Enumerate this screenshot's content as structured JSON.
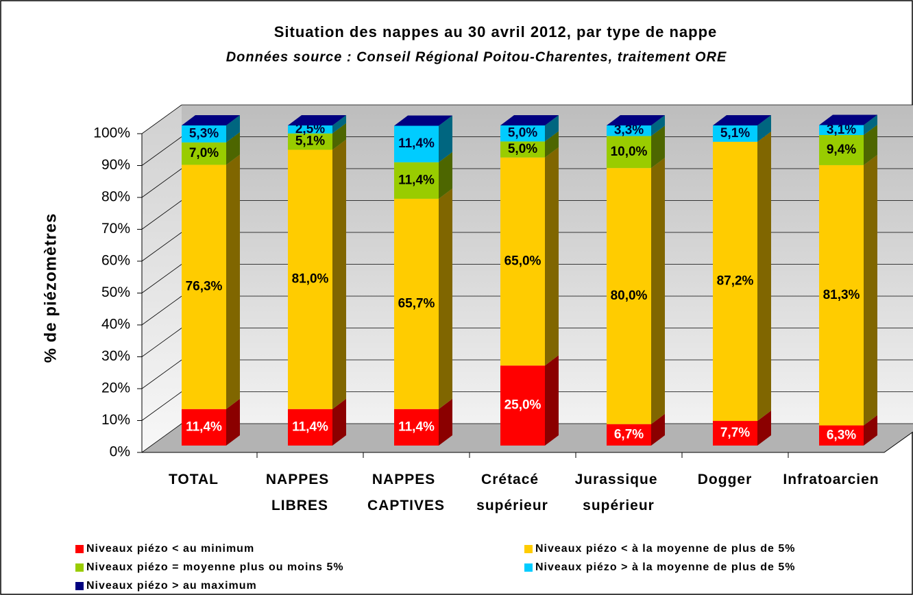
{
  "chart_data": {
    "type": "bar3d_stacked",
    "title": "Situation des nappes au 30 avril 2012, par type de nappe",
    "subtitle": "Données source : Conseil Régional Poitou-Charentes, traitement ORE",
    "y_label": "% de piézomètres",
    "categories": [
      "TOTAL",
      "NAPPES LIBRES",
      "NAPPES CAPTIVES",
      "Crétacé supérieur",
      "Jurassique supérieur",
      "Dogger",
      "Infratoarcien"
    ],
    "series": [
      {
        "name": "Niveaux piézo < au minimum",
        "color": "#ff0000",
        "side": "#8b0000",
        "label_color": "#ffffff",
        "values": [
          11.4,
          11.4,
          11.4,
          25.0,
          6.7,
          7.7,
          6.3
        ],
        "value_labels": [
          "11,4%",
          "11,4%",
          "11,4%",
          "25,0%",
          "6,7%",
          "7,7%",
          "6,3%"
        ]
      },
      {
        "name": "Niveaux piézo < à la moyenne de plus de 5%",
        "color": "#ffcc00",
        "side": "#806600",
        "label_color": "#000000",
        "values": [
          76.3,
          81.0,
          65.7,
          65.0,
          80.0,
          87.2,
          81.3
        ],
        "value_labels": [
          "76,3%",
          "81,0%",
          "65,7%",
          "65,0%",
          "80,0%",
          "87,2%",
          "81,3%"
        ]
      },
      {
        "name": "Niveaux piézo = moyenne plus ou moins 5%",
        "color": "#99cc00",
        "side": "#4d6600",
        "label_color": "#000000",
        "values": [
          7.0,
          5.1,
          11.4,
          5.0,
          10.0,
          0,
          9.4
        ],
        "value_labels": [
          "7,0%",
          "5,1%",
          "11,4%",
          "5,0%",
          "10,0%",
          null,
          "9,4%"
        ]
      },
      {
        "name": "Niveaux piézo > à la moyenne de plus de 5%",
        "color": "#00ccff",
        "side": "#006680",
        "label_color": "#000033",
        "values": [
          5.3,
          2.5,
          11.4,
          5.0,
          3.3,
          5.1,
          3.1
        ],
        "value_labels": [
          "5,3%",
          "2,5%",
          "11,4%",
          "5,0%",
          "3,3%",
          "5,1%",
          "3,1%"
        ]
      },
      {
        "name": "Niveaux piézo > au maximum",
        "color": "#000080",
        "side": "#000050",
        "label_color": "#ffffff",
        "values": [
          0,
          0,
          0,
          0,
          0,
          0,
          0
        ],
        "value_labels": [
          null,
          null,
          null,
          null,
          null,
          null,
          null
        ]
      }
    ],
    "ylim": [
      0,
      100
    ],
    "yticks": [
      {
        "value": 0,
        "label": "0%"
      },
      {
        "value": 10,
        "label": "10%"
      },
      {
        "value": 20,
        "label": "20%"
      },
      {
        "value": 30,
        "label": "30%"
      },
      {
        "value": 40,
        "label": "40%"
      },
      {
        "value": 50,
        "label": "50%"
      },
      {
        "value": 60,
        "label": "60%"
      },
      {
        "value": 70,
        "label": "70%"
      },
      {
        "value": 80,
        "label": "80%"
      },
      {
        "value": 90,
        "label": "90%"
      },
      {
        "value": 100,
        "label": "100%"
      }
    ],
    "grid": true,
    "legend": "bottom"
  }
}
